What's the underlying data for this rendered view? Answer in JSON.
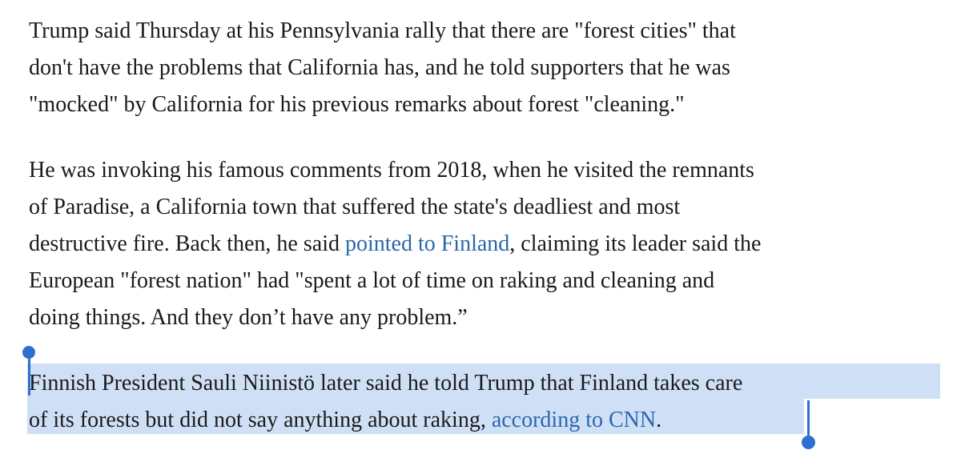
{
  "article": {
    "paragraph1": {
      "lines": [
        "Trump said Thursday at his Pennsylvania rally that there are \"forest cities\" that",
        "don't have the problems that California has, and he told supporters that he was",
        "\"mocked\" by California for his previous remarks about forest \"cleaning.\""
      ]
    },
    "paragraph2": {
      "line1": "He was invoking his famous comments from 2018, when he visited the remnants",
      "line2": "of Paradise, a California town that suffered the state's deadliest and most",
      "line3_before": "destructive fire. Back then, he said ",
      "line3_link": "pointed to Finland",
      "line3_after": ", claiming its leader said the",
      "line4": "European \"forest nation\" had \"spent a lot of time on raking and cleaning and",
      "line5": "doing things. And they don’t have any problem.”"
    },
    "paragraph3": {
      "line1": "Finnish President Sauli Niinistö later said he told Trump that Finland takes care",
      "line2_before": "of its forests but did not say anything about raking, ",
      "line2_link": "according to CNN",
      "line2_after": "."
    }
  },
  "colors": {
    "link": "#2a66ad",
    "selection": "#cfe0f6",
    "selection_handle": "#2f6fd1",
    "text": "#1a1a1a"
  }
}
